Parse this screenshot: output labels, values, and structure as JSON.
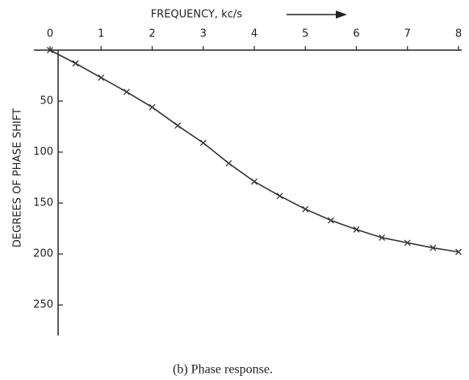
{
  "chart_data": {
    "type": "line",
    "xlabel": "FREQUENCY, kc/s",
    "ylabel": "DEGREES OF PHASE SHIFT",
    "caption": "(b) Phase response.",
    "x": [
      0,
      0.5,
      1,
      1.5,
      2,
      2.5,
      3,
      3.5,
      4,
      4.5,
      5,
      5.5,
      6,
      6.5,
      7,
      7.5,
      8
    ],
    "series": [
      {
        "name": "Phase",
        "color": "#333333",
        "values": [
          0,
          13,
          27,
          41,
          56,
          74,
          91,
          111,
          129,
          143,
          156,
          167,
          176,
          184,
          189,
          194,
          198
        ]
      }
    ],
    "xlim": [
      0,
      8
    ],
    "xticks": [
      0,
      1,
      2,
      3,
      4,
      5,
      6,
      7,
      8
    ],
    "ylim": [
      0,
      280
    ],
    "yticks": [
      50,
      100,
      150,
      200,
      250
    ],
    "y_inverted": true,
    "x_axis_position": "top",
    "grid": false
  }
}
